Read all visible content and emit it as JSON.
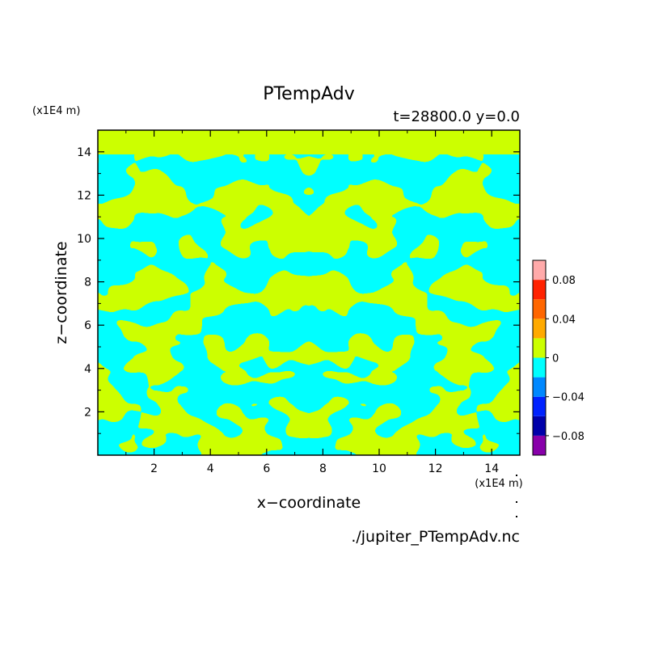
{
  "chart_data": {
    "type": "heatmap",
    "title": "PTempAdv",
    "subtitle": "t=28800.0 y=0.0",
    "xlabel": "x−coordinate",
    "ylabel": "z−coordinate",
    "x_unit": "(x1E4 m)",
    "y_unit": "(x1E4 m)",
    "xlim": [
      0,
      15
    ],
    "ylim": [
      0,
      15
    ],
    "x_ticks": [
      2,
      4,
      6,
      8,
      10,
      12,
      14
    ],
    "y_ticks": [
      2,
      4,
      6,
      8,
      10,
      12,
      14
    ],
    "x_tick_labels": [
      "2",
      "4",
      "6",
      "8",
      "10",
      "12",
      "14"
    ],
    "y_tick_labels": [
      "2",
      "4",
      "6",
      "8",
      "10",
      "12",
      "14"
    ],
    "field_colors": {
      "positive": "#ccff00",
      "negative": "#00ffff"
    },
    "colorbar": {
      "range": [
        -0.1,
        0.1
      ],
      "levels": [
        {
          "from": -0.1,
          "to": -0.08,
          "color": "#8800aa"
        },
        {
          "from": -0.08,
          "to": -0.06,
          "color": "#0000aa"
        },
        {
          "from": -0.06,
          "to": -0.04,
          "color": "#0022ff"
        },
        {
          "from": -0.04,
          "to": -0.02,
          "color": "#0088ff"
        },
        {
          "from": -0.02,
          "to": 0.0,
          "color": "#00ffff"
        },
        {
          "from": 0.0,
          "to": 0.02,
          "color": "#ccff00"
        },
        {
          "from": 0.02,
          "to": 0.04,
          "color": "#ffaa00"
        },
        {
          "from": 0.04,
          "to": 0.06,
          "color": "#ff6600"
        },
        {
          "from": 0.06,
          "to": 0.08,
          "color": "#ff2200"
        },
        {
          "from": 0.08,
          "to": 0.1,
          "color": "#ffaaaa"
        }
      ],
      "tick_values": [
        0.08,
        0.04,
        0,
        -0.04,
        -0.08
      ],
      "tick_labels": [
        "0.08",
        "0.04",
        "0",
        "−0.04",
        "−0.08"
      ]
    },
    "source_file": "./jupiter_PTempAdv.nc"
  }
}
